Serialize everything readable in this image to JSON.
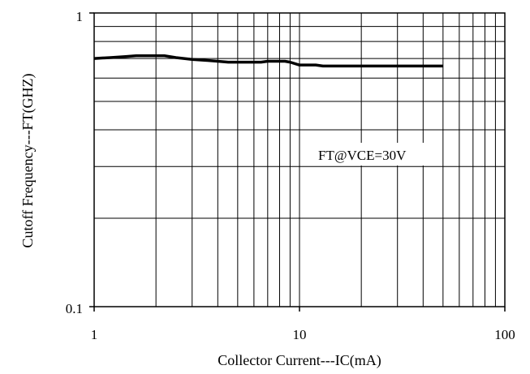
{
  "chart_data": {
    "type": "line",
    "title": "",
    "xlabel": "Collector Current---IC(mA)",
    "ylabel": "Cutoff Frequency---FT(GHZ)",
    "x_scale": "log",
    "y_scale": "log",
    "xlim": [
      1,
      100
    ],
    "ylim": [
      0.1,
      1
    ],
    "x_ticks": [
      "1",
      "10",
      "100"
    ],
    "y_ticks": [
      "0.1",
      "1"
    ],
    "grid": true,
    "annotation": "FT@VCE=30V",
    "series": [
      {
        "x": [
          1,
          1.2,
          1.4,
          1.6,
          1.8,
          2.0,
          2.2,
          2.5,
          3.0,
          3.5,
          4.0,
          4.5,
          5.0,
          6.0,
          6.5,
          7.0,
          7.5,
          8.0,
          8.5,
          9.0,
          10,
          11,
          12,
          13,
          14,
          16,
          20,
          25,
          30,
          40,
          50
        ],
        "y": [
          0.7,
          0.705,
          0.71,
          0.715,
          0.715,
          0.715,
          0.715,
          0.705,
          0.695,
          0.69,
          0.685,
          0.68,
          0.68,
          0.68,
          0.68,
          0.685,
          0.685,
          0.685,
          0.685,
          0.68,
          0.665,
          0.665,
          0.665,
          0.66,
          0.66,
          0.66,
          0.66,
          0.66,
          0.66,
          0.66,
          0.66
        ]
      }
    ]
  }
}
